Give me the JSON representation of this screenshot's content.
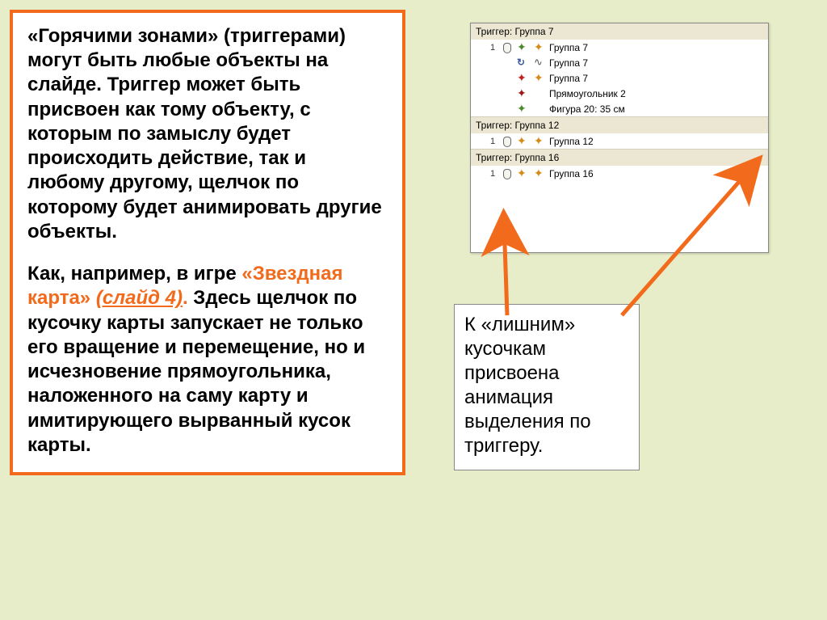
{
  "background_color": "#e8edc9",
  "border_color": "#f26a1b",
  "highlight_color": "#f26a1b",
  "trig_header_bg": "#ebe7d2",
  "arrow_color": "#f26a1b",
  "main": {
    "p1_a": "«Горячими зонами» (триггерами) могут быть любые объекты на слайде. Триггер может быть присвоен как тому объекту, с которым по замыслу будет происходить действие, так и любому другому, щелчок по которому будет анимировать другие объекты.",
    "p2_a": "Как, например, в игре ",
    "p2_hl": "«Звездная карта» ",
    "p2_link": "(слайд 4)",
    "p2_dot": ".",
    "p2_b": " Здесь щелчок по кусочку карты запускает не только его вращение и перемещение, но и исчезновение прямоугольника, наложенного на саму карту и имитирующего вырванный кусок карты."
  },
  "panel": {
    "g1": {
      "header": "Триггер: Группа 7",
      "items": [
        {
          "num": "1",
          "mouse": true,
          "effect": "star-green",
          "sub": "star-orange",
          "label": "Группа 7"
        },
        {
          "num": "",
          "mouse": false,
          "effect": "spin-ico",
          "sub": "path-ico",
          "label": "Группа 7"
        },
        {
          "num": "",
          "mouse": false,
          "effect": "star-red",
          "sub": "star-orange",
          "label": "Группа 7"
        },
        {
          "num": "",
          "mouse": false,
          "effect": "star-red2",
          "sub": "",
          "label": "Прямоугольник 2"
        },
        {
          "num": "",
          "mouse": false,
          "effect": "star-green",
          "sub": "",
          "label": "Фигура 20: 35 см"
        }
      ]
    },
    "g2": {
      "header": "Триггер: Группа 12",
      "items": [
        {
          "num": "1",
          "mouse": true,
          "effect": "star-orange",
          "sub": "star-orange",
          "label": "Группа 12"
        }
      ]
    },
    "g3": {
      "header": "Триггер: Группа 16",
      "items": [
        {
          "num": "1",
          "mouse": true,
          "effect": "star-orange",
          "sub": "star-orange",
          "label": "Группа 16"
        }
      ]
    }
  },
  "side": {
    "text": "К «лишним» кусочкам присвоена анимация выделения по триггеру."
  }
}
